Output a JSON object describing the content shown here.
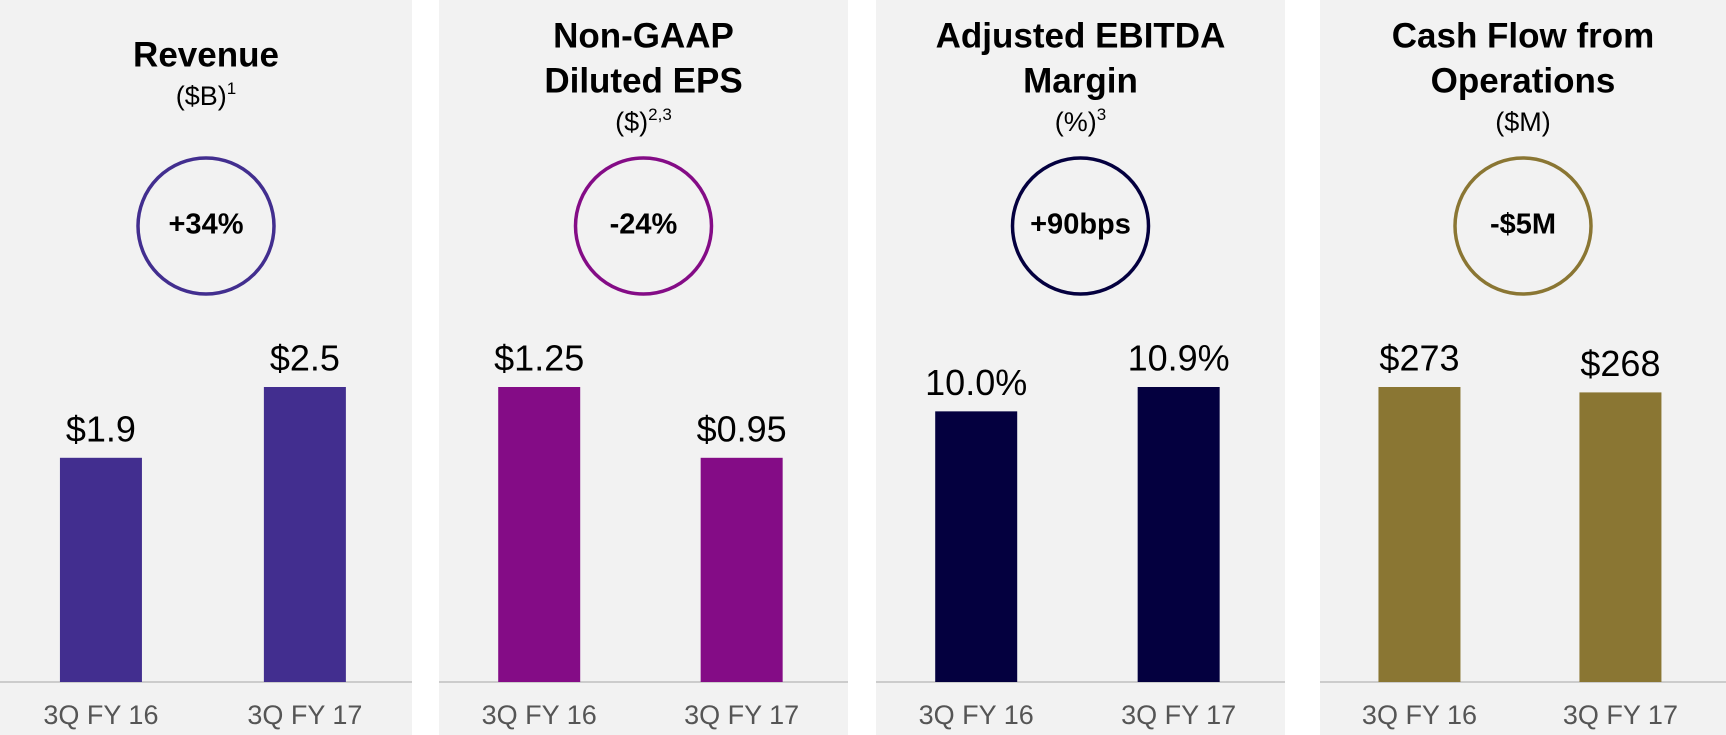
{
  "chart_data": [
    {
      "type": "bar",
      "title": [
        "Revenue"
      ],
      "subtitle": "($B)",
      "footnote": "1",
      "annotation": "+34%",
      "color": "#422e8f",
      "categories": [
        "3Q FY 16",
        "3Q FY 17"
      ],
      "values": [
        1.9,
        2.5
      ],
      "value_labels": [
        "$1.9",
        "$2.5"
      ]
    },
    {
      "type": "bar",
      "title": [
        "Non-GAAP",
        "Diluted EPS"
      ],
      "subtitle": "($)",
      "footnote": "2,3",
      "annotation": "-24%",
      "color": "#840c86",
      "categories": [
        "3Q FY 16",
        "3Q FY 17"
      ],
      "values": [
        1.25,
        0.95
      ],
      "value_labels": [
        "$1.25",
        "$0.95"
      ]
    },
    {
      "type": "bar",
      "title": [
        "Adjusted EBITDA",
        "Margin"
      ],
      "subtitle": "(%)",
      "footnote": "3",
      "annotation": "+90bps",
      "color": "#04003f",
      "categories": [
        "3Q FY 16",
        "3Q FY 17"
      ],
      "values": [
        10.0,
        10.9
      ],
      "value_labels": [
        "10.0%",
        "10.9%"
      ]
    },
    {
      "type": "bar",
      "title": [
        "Cash Flow from",
        "Operations"
      ],
      "subtitle": "($M)",
      "annotation": "-$5M",
      "color": "#8a7633",
      "categories": [
        "3Q FY 16",
        "3Q FY 17"
      ],
      "values": [
        273,
        268
      ],
      "value_labels": [
        "$273",
        "$268"
      ]
    }
  ]
}
